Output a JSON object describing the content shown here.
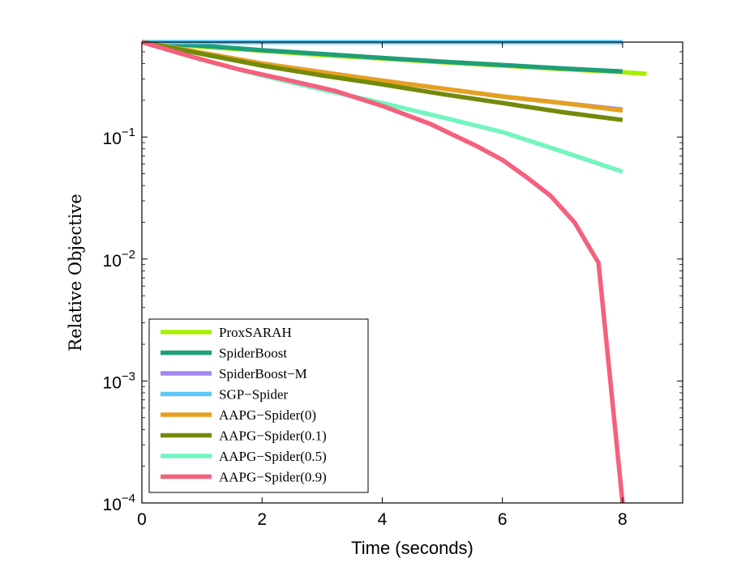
{
  "chart_data": {
    "type": "line",
    "xlabel": "Time (seconds)",
    "ylabel": "Relative Objective",
    "xlim": [
      0,
      9
    ],
    "ylim": [
      0.0001,
      0.6
    ],
    "yscale": "log",
    "xticks": [
      0,
      2,
      4,
      6,
      8
    ],
    "xtick_labels": [
      "0",
      "2",
      "4",
      "6",
      "8"
    ],
    "yticks": [
      0.1,
      0.01,
      0.001,
      0.0001
    ],
    "ytick_labels": [
      {
        "base": "10",
        "exp": "−1"
      },
      {
        "base": "10",
        "exp": "−2"
      },
      {
        "base": "10",
        "exp": "−3"
      },
      {
        "base": "10",
        "exp": "−4"
      }
    ],
    "grid": false,
    "legend_position": "bottom-left",
    "series": [
      {
        "name": "ProxSARAH",
        "color": "#a6f000",
        "x": [
          0,
          1,
          2,
          3,
          4,
          5,
          6,
          7,
          8,
          8.4
        ],
        "y": [
          0.6,
          0.55,
          0.51,
          0.47,
          0.44,
          0.41,
          0.385,
          0.36,
          0.34,
          0.33
        ]
      },
      {
        "name": "SpiderBoost",
        "color": "#1f9e79",
        "x": [
          0,
          1,
          2,
          3,
          4,
          5,
          6,
          7,
          8
        ],
        "y": [
          0.6,
          0.56,
          0.515,
          0.48,
          0.445,
          0.415,
          0.39,
          0.365,
          0.345
        ]
      },
      {
        "name": "SpiderBoost−M",
        "color": "#a287f0",
        "x": [
          0,
          1,
          2,
          3,
          4,
          5,
          6,
          7,
          8
        ],
        "y": [
          0.6,
          0.49,
          0.4,
          0.34,
          0.29,
          0.25,
          0.215,
          0.19,
          0.168
        ]
      },
      {
        "name": "SGP−Spider",
        "color": "#5bc8f5",
        "x": [
          0,
          2,
          4,
          6,
          8
        ],
        "y": [
          0.6,
          0.6,
          0.6,
          0.6,
          0.6
        ]
      },
      {
        "name": "AAPG−Spider(0)",
        "color": "#e6a020",
        "x": [
          0,
          1,
          2,
          3,
          4,
          5,
          6,
          7,
          8
        ],
        "y": [
          0.6,
          0.49,
          0.4,
          0.34,
          0.29,
          0.25,
          0.215,
          0.19,
          0.165
        ]
      },
      {
        "name": "AAPG−Spider(0.1)",
        "color": "#728a0a",
        "x": [
          0,
          1,
          2,
          3,
          4,
          5,
          6,
          7,
          8
        ],
        "y": [
          0.6,
          0.48,
          0.385,
          0.32,
          0.27,
          0.225,
          0.19,
          0.16,
          0.138
        ]
      },
      {
        "name": "AAPG−Spider(0.5)",
        "color": "#73f5bf",
        "x": [
          0,
          1,
          2,
          3,
          4,
          5,
          6,
          7,
          8
        ],
        "y": [
          0.6,
          0.43,
          0.32,
          0.245,
          0.19,
          0.145,
          0.11,
          0.076,
          0.052
        ]
      },
      {
        "name": "AAPG−Spider(0.9)",
        "color": "#f5607d",
        "x": [
          0,
          0.8,
          1.6,
          2.4,
          3.2,
          4.0,
          4.8,
          5.6,
          6.0,
          6.4,
          6.8,
          7.2,
          7.6,
          8.0
        ],
        "y": [
          0.6,
          0.46,
          0.36,
          0.295,
          0.24,
          0.18,
          0.128,
          0.083,
          0.065,
          0.047,
          0.033,
          0.02,
          0.0093,
          0.0001
        ]
      }
    ]
  }
}
